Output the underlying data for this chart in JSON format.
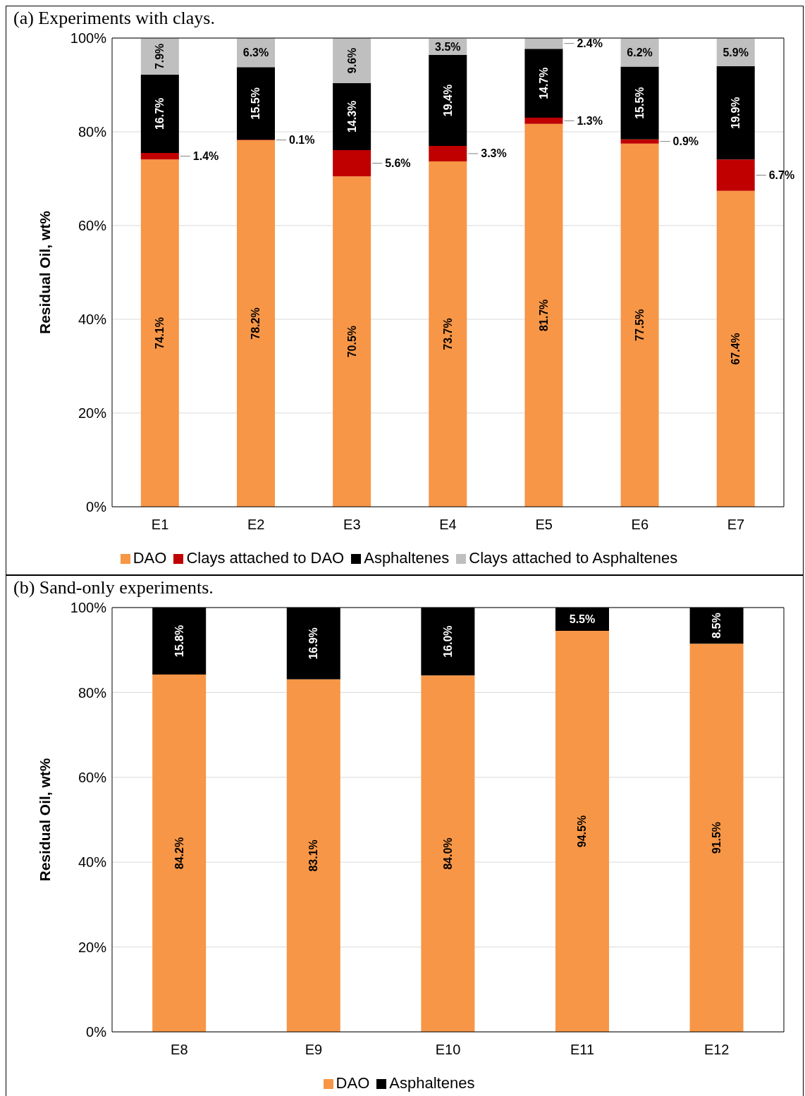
{
  "chart_data": [
    {
      "type": "bar",
      "title": "(a) Experiments with clays.",
      "ylabel": "Residual Oil, wt%",
      "categories": [
        "E1",
        "E2",
        "E3",
        "E4",
        "E5",
        "E6",
        "E7"
      ],
      "stacked": true,
      "grid": "y",
      "legend": "bottom",
      "ylim": [
        0,
        100
      ],
      "yticks": [
        {
          "value": 0,
          "label": "0%"
        },
        {
          "value": 20,
          "label": "20%"
        },
        {
          "value": 40,
          "label": "40%"
        },
        {
          "value": 60,
          "label": "60%"
        },
        {
          "value": 80,
          "label": "80%"
        },
        {
          "value": 100,
          "label": "100%"
        }
      ],
      "series": [
        {
          "name": "DAO",
          "color": "#f79646",
          "values": [
            74.1,
            78.2,
            70.5,
            73.7,
            81.7,
            77.5,
            67.4
          ],
          "value_labels": [
            "74.1%",
            "78.2%",
            "70.5%",
            "73.7%",
            "81.7%",
            "77.5%",
            "67.4%"
          ]
        },
        {
          "name": "Clays attached to DAO",
          "color": "#c00000",
          "values": [
            1.4,
            0.1,
            5.6,
            3.3,
            1.3,
            0.9,
            6.7
          ],
          "value_labels": [
            "1.4%",
            "0.1%",
            "5.6%",
            "3.3%",
            "1.3%",
            "0.9%",
            "6.7%"
          ]
        },
        {
          "name": "Asphaltenes",
          "color": "#000000",
          "values": [
            16.7,
            15.5,
            14.3,
            19.4,
            14.7,
            15.5,
            19.9
          ],
          "value_labels": [
            "16.7%",
            "15.5%",
            "14.3%",
            "19.4%",
            "14.7%",
            "15.5%",
            "19.9%"
          ]
        },
        {
          "name": "Clays attached to Asphaltenes",
          "color": "#bfbfbf",
          "values": [
            7.9,
            6.3,
            9.6,
            3.5,
            2.4,
            6.2,
            5.9
          ],
          "value_labels": [
            "7.9%",
            "6.3%",
            "9.6%",
            "3.5%",
            "2.4%",
            "6.2%",
            "5.9%"
          ]
        }
      ]
    },
    {
      "type": "bar",
      "title": "(b) Sand-only experiments.",
      "ylabel": "Residual Oil, wt%",
      "categories": [
        "E8",
        "E9",
        "E10",
        "E11",
        "E12"
      ],
      "stacked": true,
      "grid": "y",
      "legend": "bottom",
      "ylim": [
        0,
        100
      ],
      "yticks": [
        {
          "value": 0,
          "label": "0%"
        },
        {
          "value": 20,
          "label": "20%"
        },
        {
          "value": 40,
          "label": "40%"
        },
        {
          "value": 60,
          "label": "60%"
        },
        {
          "value": 80,
          "label": "80%"
        },
        {
          "value": 100,
          "label": "100%"
        }
      ],
      "series": [
        {
          "name": "DAO",
          "color": "#f79646",
          "values": [
            84.2,
            83.1,
            84.0,
            94.5,
            91.5
          ],
          "value_labels": [
            "84.2%",
            "83.1%",
            "84.0%",
            "94.5%",
            "91.5%"
          ]
        },
        {
          "name": "Asphaltenes",
          "color": "#000000",
          "values": [
            15.8,
            16.9,
            16.0,
            5.5,
            8.5
          ],
          "value_labels": [
            "15.8%",
            "16.9%",
            "16.0%",
            "5.5%",
            "8.5%"
          ]
        }
      ]
    }
  ]
}
